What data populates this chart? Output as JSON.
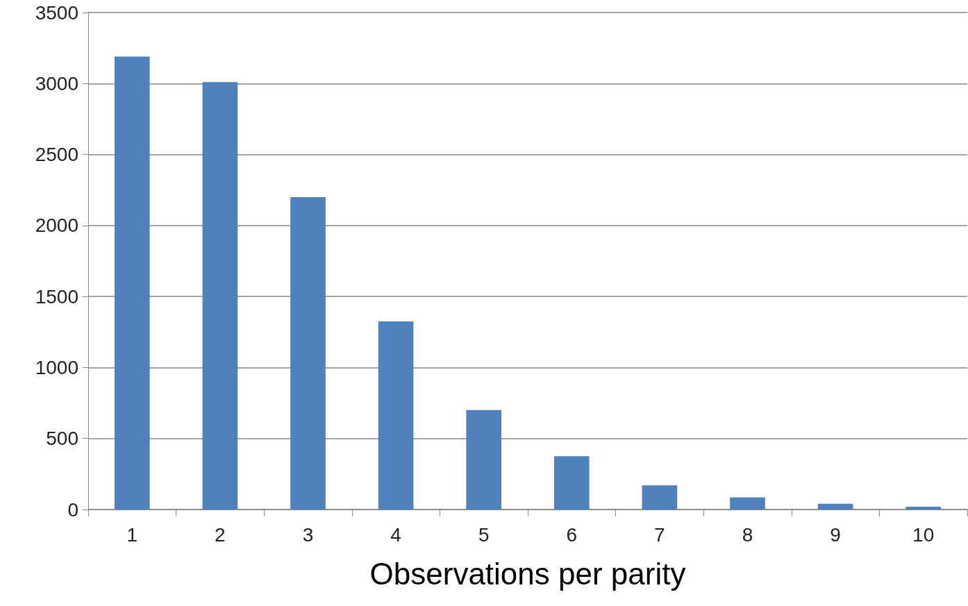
{
  "chart_data": {
    "type": "bar",
    "xlabel": "Observations per parity",
    "categories": [
      "1",
      "2",
      "3",
      "4",
      "5",
      "6",
      "7",
      "8",
      "9",
      "10"
    ],
    "values": [
      3190,
      3010,
      2200,
      1325,
      700,
      375,
      170,
      85,
      40,
      20
    ],
    "color": "#4f81bd",
    "ylim": [
      0,
      3500
    ],
    "yticks": [
      0,
      500,
      1000,
      1500,
      2000,
      2500,
      3000,
      3500
    ],
    "grid": "y"
  }
}
